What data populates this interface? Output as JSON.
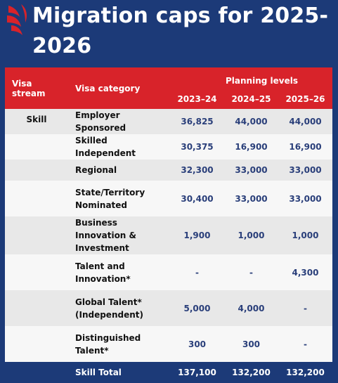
{
  "colors": {
    "background": "#1c3a78",
    "header": "#d8232a",
    "logo": "#d8232a"
  },
  "logo_icon": "sbs-logo",
  "title": "Migration caps for 2025-2026",
  "table": {
    "header": {
      "visa_stream": "Visa stream",
      "visa_category": "Visa category",
      "planning_levels": "Planning levels",
      "years": [
        "2023–24",
        "2024–25",
        "2025–26"
      ]
    },
    "stream_label": "Skill",
    "rows": [
      {
        "category": "Employer Sponsored",
        "values": [
          "36,825",
          "44,000",
          "44,000"
        ]
      },
      {
        "category": "Skilled Independent",
        "values": [
          "30,375",
          "16,900",
          "16,900"
        ]
      },
      {
        "category": "Regional",
        "values": [
          "32,300",
          "33,000",
          "33,000"
        ]
      },
      {
        "category": "State/Territory Nominated",
        "values": [
          "30,400",
          "33,000",
          "33,000"
        ]
      },
      {
        "category": "Business Innovation & Investment",
        "values": [
          "1,900",
          "1,000",
          "1,000"
        ]
      },
      {
        "category": "Talent and Innovation*",
        "values": [
          "-",
          "-",
          "4,300"
        ]
      },
      {
        "category": "Global Talent* (Independent)",
        "values": [
          "5,000",
          "4,000",
          "-"
        ]
      },
      {
        "category": "Distinguished Talent*",
        "values": [
          "300",
          "300",
          "-"
        ]
      }
    ],
    "total": {
      "label": "Skill Total",
      "values": [
        "137,100",
        "132,200",
        "132,200"
      ]
    }
  }
}
